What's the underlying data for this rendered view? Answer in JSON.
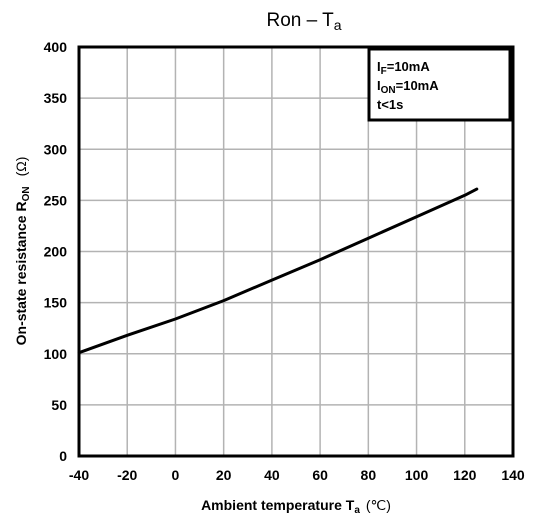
{
  "chart_data": {
    "type": "line",
    "title": {
      "main": "Ron – T",
      "sub": "a"
    },
    "xlabel": {
      "main": "Ambient temperature   T",
      "sub": "a",
      "unit": "(℃)"
    },
    "ylabel": {
      "main": "On-state resistance   R",
      "sub": "ON",
      "unit": "(Ω)"
    },
    "xlim": [
      -40,
      140
    ],
    "ylim": [
      0,
      400
    ],
    "xticks": [
      -40,
      -20,
      0,
      20,
      40,
      60,
      80,
      100,
      120,
      140
    ],
    "yticks": [
      0,
      50,
      100,
      150,
      200,
      250,
      300,
      350,
      400
    ],
    "grid": true,
    "series": [
      {
        "x": [
          -40,
          -20,
          0,
          20,
          40,
          60,
          80,
          100,
          120,
          125
        ],
        "y": [
          101,
          118,
          134,
          152,
          172,
          192,
          213,
          234,
          255,
          261
        ]
      }
    ],
    "conditions": [
      {
        "main": "I",
        "sub": "F",
        "rest": "=10mA"
      },
      {
        "main": "I",
        "sub": "ON",
        "rest": "=10mA"
      },
      {
        "main": "t<1s",
        "sub": "",
        "rest": ""
      }
    ],
    "conditions_box_placement": "top-right"
  }
}
